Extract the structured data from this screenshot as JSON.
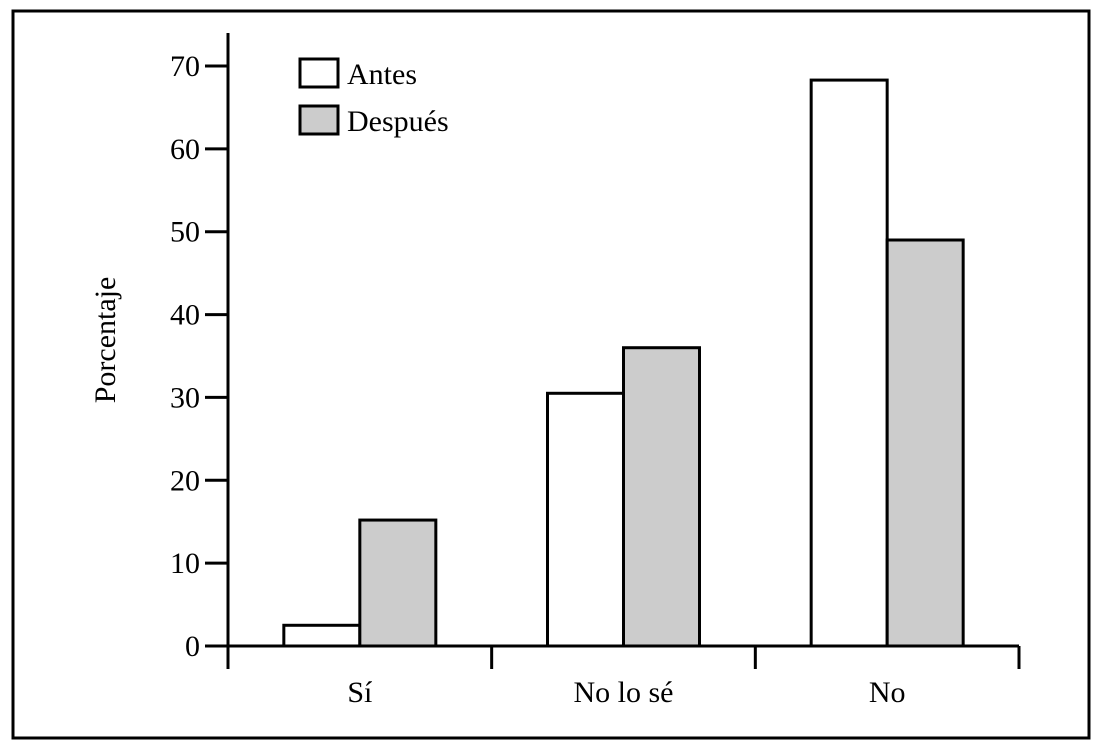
{
  "chart_data": {
    "type": "bar",
    "title": "",
    "xlabel": "",
    "ylabel": "Porcentaje",
    "categories": [
      "Sí",
      "No lo sé",
      "No"
    ],
    "series": [
      {
        "name": "Antes",
        "values": [
          2.5,
          30.5,
          68.3
        ],
        "color": "#ffffff"
      },
      {
        "name": "Después",
        "values": [
          15.2,
          36.0,
          49.0
        ],
        "color": "#cccccc"
      }
    ],
    "ylim": [
      0,
      70
    ],
    "yticks": [
      0,
      10,
      20,
      30,
      40,
      50,
      60,
      70
    ],
    "grid": false,
    "legend_position": "top-left"
  }
}
